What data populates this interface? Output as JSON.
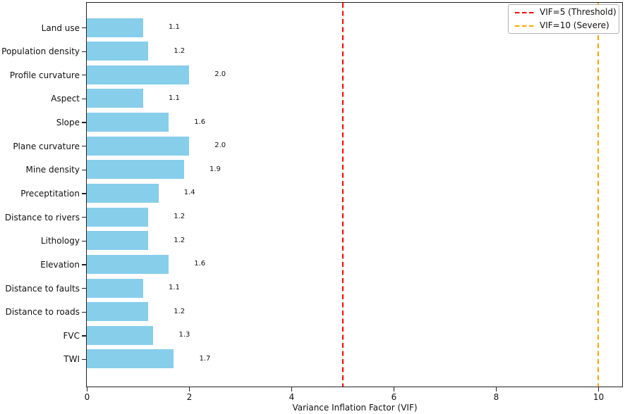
{
  "chart_data": {
    "type": "bar",
    "orientation": "horizontal",
    "title": "",
    "xlabel": "Variance Inflation Factor (VIF)",
    "ylabel": "",
    "xlim": [
      0,
      10.47
    ],
    "xticks": [
      0,
      2,
      4,
      6,
      8,
      10
    ],
    "xtick_labels": [
      "0",
      "2",
      "4",
      "6",
      "8",
      "10"
    ],
    "grid": false,
    "categories": [
      "Land use",
      "Population density",
      "Profile curvature",
      "Aspect",
      "Slope",
      "Plane curvature",
      "Mine density",
      "Preceptitation",
      "Distance to rivers",
      "Lithology",
      "Elevation",
      "Distance to faults",
      "Distance to roads",
      "FVC",
      "TWI"
    ],
    "values": [
      1.1,
      1.2,
      2.0,
      1.1,
      1.6,
      2.0,
      1.9,
      1.4,
      1.2,
      1.2,
      1.6,
      1.1,
      1.2,
      1.3,
      1.7
    ],
    "value_labels": [
      "1.1",
      "1.2",
      "2.0",
      "1.1",
      "1.6",
      "2.0",
      "1.9",
      "1.4",
      "1.2",
      "1.2",
      "1.6",
      "1.1",
      "1.2",
      "1.3",
      "1.7"
    ],
    "bar_color": "#87CEEB",
    "reference_lines": [
      {
        "value": 5,
        "color": "#ff0000",
        "style": "dashed",
        "label": "VIF=5 (Threshold)"
      },
      {
        "value": 10,
        "color": "#FFA500",
        "style": "dashed",
        "label": "VIF=10 (Severe)"
      }
    ],
    "legend": {
      "position": "upper right",
      "entries": [
        "VIF=5 (Threshold)",
        "VIF=10 (Severe)"
      ]
    }
  }
}
